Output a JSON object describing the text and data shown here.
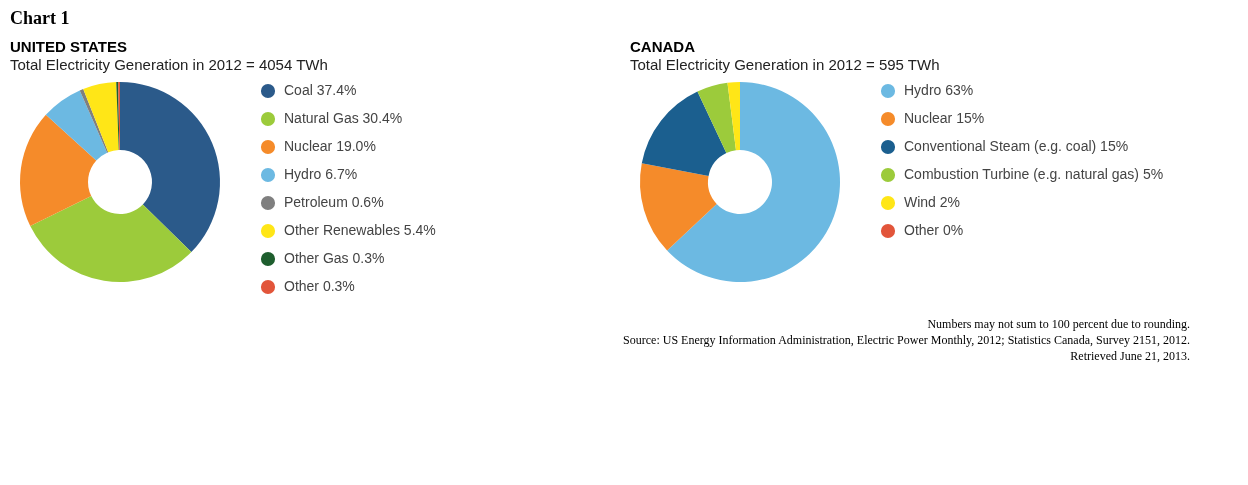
{
  "chart_data": [
    {
      "type": "donut",
      "title": "UNITED STATES",
      "subtitle": "Total Electricity Generation in 2012 = 4054 TWh",
      "annotations": [
        "Chart 1"
      ],
      "legend": "right",
      "categories": [
        "Coal",
        "Natural Gas",
        "Nuclear",
        "Hydro",
        "Petroleum",
        "Other Renewables",
        "Other Gas",
        "Other"
      ],
      "values": [
        37.4,
        30.4,
        19.0,
        6.7,
        0.6,
        5.4,
        0.3,
        0.3
      ],
      "value_labels": [
        "37.4%",
        "30.4%",
        "19.0%",
        "6.7%",
        "0.6%",
        "5.4%",
        "0.3%",
        "0.3%"
      ],
      "colors": [
        "#2b5a8a",
        "#9ccb3b",
        "#f58b2a",
        "#6cb9e2",
        "#7f7f7f",
        "#ffe617",
        "#1e5e2e",
        "#e2553a"
      ]
    },
    {
      "type": "donut",
      "title": "CANADA",
      "subtitle": "Total Electricity Generation in 2012 = 595 TWh",
      "legend": "right",
      "categories": [
        "Hydro",
        "Nuclear",
        "Conventional Steam (e.g. coal)",
        "Combustion Turbine (e.g. natural gas)",
        "Wind",
        "Other"
      ],
      "values": [
        63,
        15,
        15,
        5,
        2,
        0
      ],
      "value_labels": [
        "63%",
        "15%",
        "15%",
        "5%",
        "2%",
        "0%"
      ],
      "colors": [
        "#6cb9e2",
        "#f58b2a",
        "#1b5f8f",
        "#9ccb3b",
        "#ffe617",
        "#e2553a"
      ],
      "annotations": [
        "Numbers may not sum to 100 percent due to rounding.",
        "Source: US Energy Information Administration, Electric Power Monthly, 2012; Statistics Canada, Survey 2151, 2012.",
        "Retrieved June 21, 2013."
      ]
    }
  ]
}
